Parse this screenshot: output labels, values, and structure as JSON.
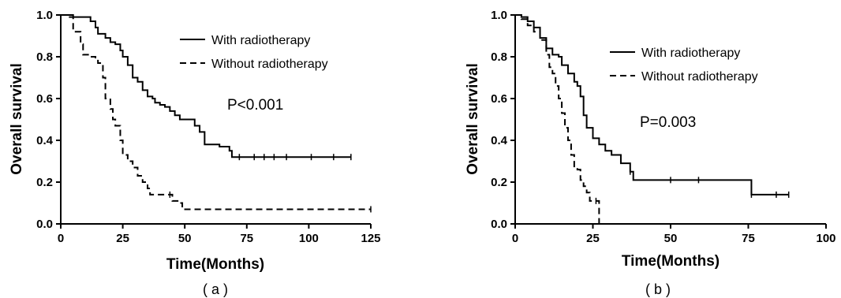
{
  "chart_data": [
    {
      "type": "line",
      "panel_label": "( a )",
      "xlabel": "Time(Months)",
      "ylabel": "Overall survival",
      "xlim": [
        0,
        125
      ],
      "ylim": [
        0,
        1.0
      ],
      "xticks": [
        0,
        25,
        50,
        75,
        100,
        125
      ],
      "yticks": [
        0.0,
        0.2,
        0.4,
        0.6,
        0.8,
        1.0
      ],
      "annotation": "P<0.001",
      "legend_position": "top-right",
      "series": [
        {
          "name": "With radiotherapy",
          "style": "solid",
          "color": "#000000",
          "points": [
            [
              0,
              1.0
            ],
            [
              3,
              1.0
            ],
            [
              5,
              0.99
            ],
            [
              10,
              0.99
            ],
            [
              12,
              0.97
            ],
            [
              14,
              0.94
            ],
            [
              15,
              0.91
            ],
            [
              18,
              0.89
            ],
            [
              20,
              0.87
            ],
            [
              22,
              0.86
            ],
            [
              24,
              0.83
            ],
            [
              25,
              0.8
            ],
            [
              27,
              0.76
            ],
            [
              29,
              0.7
            ],
            [
              31,
              0.68
            ],
            [
              33,
              0.64
            ],
            [
              35,
              0.61
            ],
            [
              37,
              0.6
            ],
            [
              38,
              0.58
            ],
            [
              40,
              0.57
            ],
            [
              42,
              0.56
            ],
            [
              44,
              0.54
            ],
            [
              46,
              0.52
            ],
            [
              48,
              0.5
            ],
            [
              50,
              0.5
            ],
            [
              52,
              0.5
            ],
            [
              54,
              0.47
            ],
            [
              56,
              0.44
            ],
            [
              58,
              0.38
            ],
            [
              63,
              0.38
            ],
            [
              64,
              0.37
            ],
            [
              68,
              0.35
            ],
            [
              69,
              0.32
            ],
            [
              117,
              0.32
            ]
          ],
          "censor_marks": [
            [
              72,
              0.32
            ],
            [
              78,
              0.32
            ],
            [
              82,
              0.32
            ],
            [
              86,
              0.32
            ],
            [
              91,
              0.32
            ],
            [
              101,
              0.32
            ],
            [
              110,
              0.32
            ],
            [
              117,
              0.32
            ]
          ]
        },
        {
          "name": "Without radiotherapy",
          "style": "dashed",
          "color": "#000000",
          "points": [
            [
              0,
              1.0
            ],
            [
              3,
              0.99
            ],
            [
              5,
              0.92
            ],
            [
              8,
              0.86
            ],
            [
              9,
              0.81
            ],
            [
              12,
              0.8
            ],
            [
              14,
              0.79
            ],
            [
              15,
              0.77
            ],
            [
              17,
              0.7
            ],
            [
              18,
              0.6
            ],
            [
              20,
              0.55
            ],
            [
              21,
              0.5
            ],
            [
              22,
              0.47
            ],
            [
              24,
              0.4
            ],
            [
              25,
              0.33
            ],
            [
              27,
              0.3
            ],
            [
              29,
              0.27
            ],
            [
              31,
              0.23
            ],
            [
              33,
              0.2
            ],
            [
              35,
              0.17
            ],
            [
              36,
              0.14
            ],
            [
              44,
              0.14
            ],
            [
              45,
              0.11
            ],
            [
              48,
              0.1
            ],
            [
              49,
              0.07
            ],
            [
              125,
              0.07
            ]
          ],
          "censor_marks": [
            [
              44,
              0.14
            ],
            [
              125,
              0.07
            ]
          ]
        }
      ]
    },
    {
      "type": "line",
      "panel_label": "( b )",
      "xlabel": "Time(Months)",
      "ylabel": "Overall survival",
      "xlim": [
        0,
        100
      ],
      "ylim": [
        0,
        1.0
      ],
      "xticks": [
        0,
        25,
        50,
        75,
        100
      ],
      "yticks": [
        0.0,
        0.2,
        0.4,
        0.6,
        0.8,
        1.0
      ],
      "annotation": "P=0.003",
      "legend_position": "top-right",
      "series": [
        {
          "name": "With radiotherapy",
          "style": "solid",
          "color": "#000000",
          "points": [
            [
              0,
              1.0
            ],
            [
              2,
              0.99
            ],
            [
              4,
              0.97
            ],
            [
              6,
              0.94
            ],
            [
              8,
              0.89
            ],
            [
              10,
              0.84
            ],
            [
              12,
              0.81
            ],
            [
              14,
              0.8
            ],
            [
              15,
              0.76
            ],
            [
              17,
              0.72
            ],
            [
              19,
              0.68
            ],
            [
              20,
              0.66
            ],
            [
              21,
              0.61
            ],
            [
              22,
              0.52
            ],
            [
              23,
              0.46
            ],
            [
              25,
              0.41
            ],
            [
              27,
              0.38
            ],
            [
              29,
              0.35
            ],
            [
              31,
              0.33
            ],
            [
              34,
              0.29
            ],
            [
              37,
              0.25
            ],
            [
              38,
              0.21
            ],
            [
              59,
              0.21
            ],
            [
              76,
              0.14
            ],
            [
              88,
              0.14
            ]
          ],
          "censor_marks": [
            [
              37,
              0.25
            ],
            [
              50,
              0.21
            ],
            [
              59,
              0.21
            ],
            [
              76,
              0.14
            ],
            [
              84,
              0.14
            ],
            [
              88,
              0.14
            ]
          ]
        },
        {
          "name": "Without radiotherapy",
          "style": "dashed",
          "color": "#000000",
          "points": [
            [
              0,
              1.0
            ],
            [
              2,
              0.98
            ],
            [
              4,
              0.95
            ],
            [
              6,
              0.92
            ],
            [
              8,
              0.88
            ],
            [
              10,
              0.81
            ],
            [
              11,
              0.75
            ],
            [
              12,
              0.72
            ],
            [
              13,
              0.66
            ],
            [
              14,
              0.6
            ],
            [
              15,
              0.53
            ],
            [
              16,
              0.46
            ],
            [
              17,
              0.4
            ],
            [
              18,
              0.33
            ],
            [
              19,
              0.27
            ],
            [
              20,
              0.26
            ],
            [
              21,
              0.21
            ],
            [
              22,
              0.18
            ],
            [
              23,
              0.15
            ],
            [
              24,
              0.11
            ],
            [
              26,
              0.11
            ],
            [
              27,
              0.0
            ]
          ],
          "censor_marks": [
            [
              26,
              0.11
            ]
          ]
        }
      ]
    }
  ]
}
